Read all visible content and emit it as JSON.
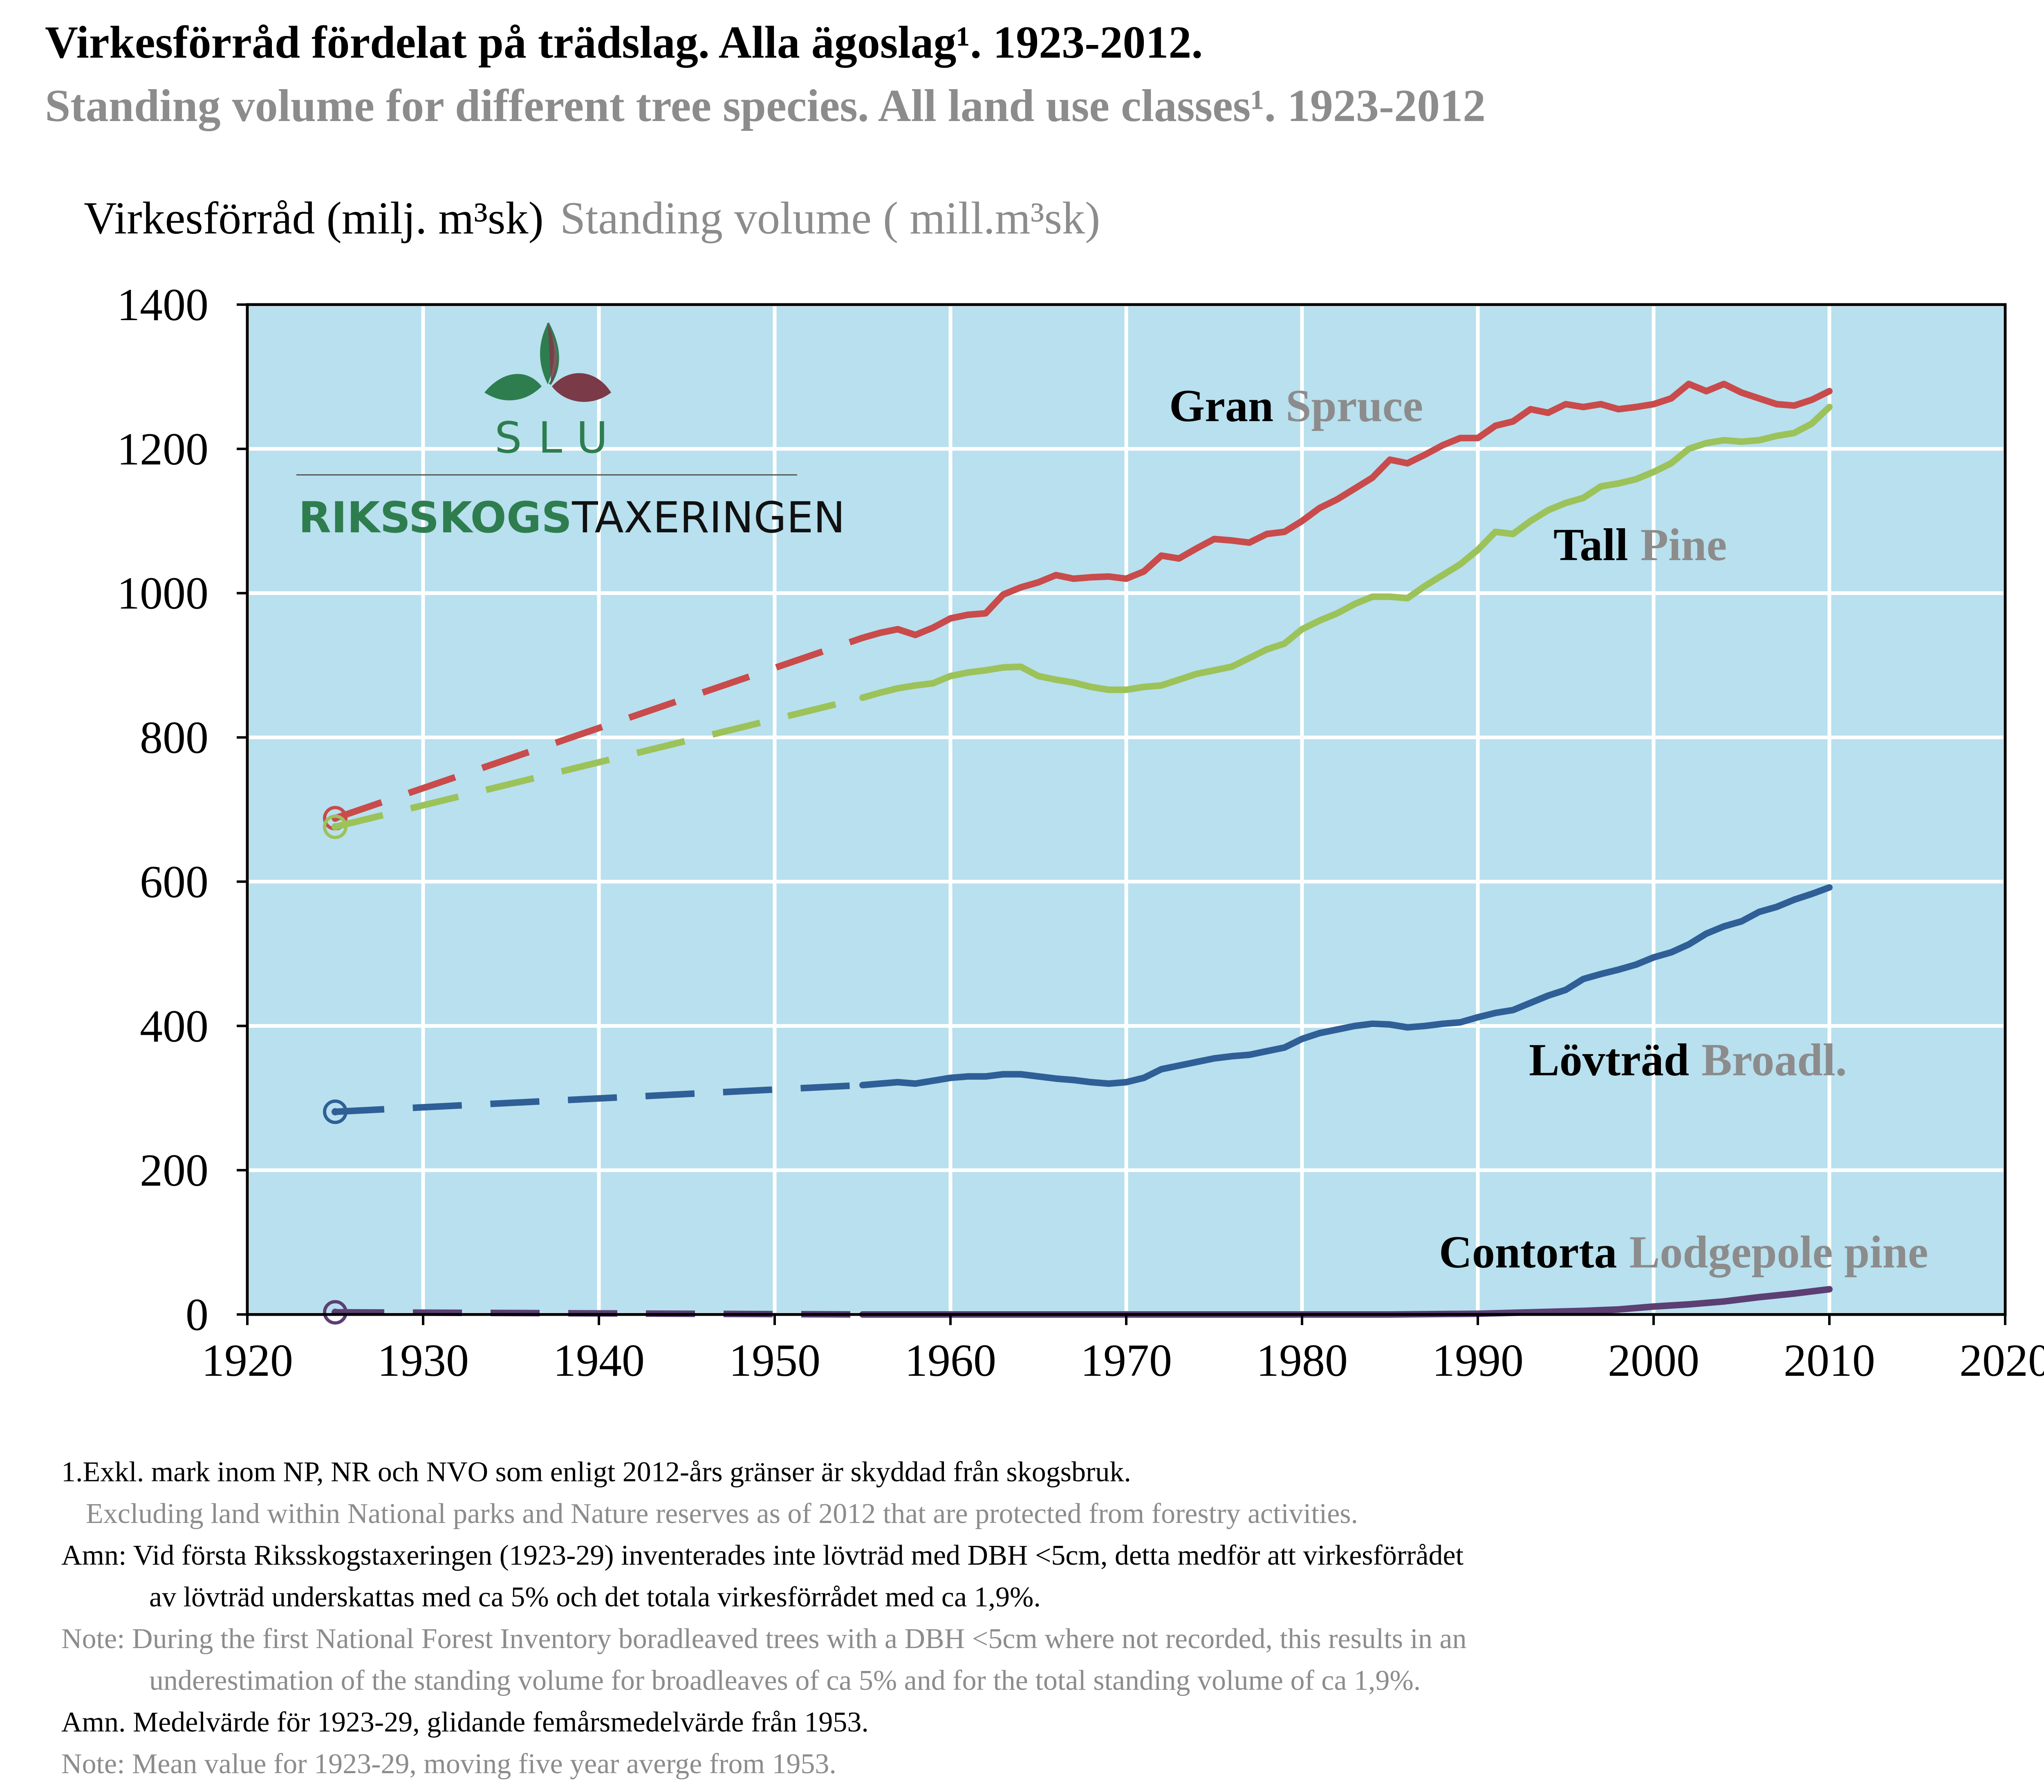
{
  "title": "Virkesförråd fördelat på trädslag. Alla ägoslag¹. 1923-2012.",
  "subtitle": "Standing volume for different tree species. All land use classes¹. 1923-2012",
  "ylabel_sv": "Virkesförråd (milj. m³sk)",
  "ylabel_en": "Standing volume ( mill.m³sk)",
  "logo": {
    "slu": "SLU",
    "riks_bold": "RIKSSKOGS",
    "riks_thin": "TAXERINGEN"
  },
  "colors": {
    "plot_bg": "#b8e0ee",
    "grid": "#ffffff",
    "spruce": "#c94b4b",
    "pine": "#9cc25a",
    "broadl": "#2f5f96",
    "lodgepole": "#5c3f73"
  },
  "series_labels": {
    "spruce": {
      "sv": "Gran",
      "en": "Spruce"
    },
    "pine": {
      "sv": "Tall",
      "en": "Pine"
    },
    "broadl": {
      "sv": "Lövträd",
      "en": "Broadl."
    },
    "lodgepole": {
      "sv": "Contorta",
      "en": "Lodgepole pine"
    }
  },
  "notes": [
    "1.Exkl. mark inom NP, NR och NVO som enligt 2012-års gränser är skyddad från skogsbruk.",
    "Excluding land within National parks and Nature reserves as of 2012 that are protected from forestry activities.",
    "Amn: Vid första Riksskogstaxeringen (1923-29) inventerades inte lövträd med DBH <5cm, detta medför att virkesförrådet",
    "av lövträd underskattas med ca 5% och det totala virkesförrådet med ca 1,9%.",
    "Note: During the first National Forest Inventory boradleaved trees with a DBH <5cm where not recorded, this results in an",
    "underestimation of the standing volume for broadleaves of ca 5% and for the total standing volume of ca 1,9%.",
    "Amn. Medelvärde för 1923-29, glidande femårsmedelvärde från 1953.",
    "Note: Mean value for 1923-29, moving five year averge from 1953."
  ],
  "chart_data": {
    "type": "line",
    "xlim": [
      1920,
      2020
    ],
    "ylim": [
      0,
      1400
    ],
    "xticks": [
      1920,
      1930,
      1940,
      1950,
      1960,
      1970,
      1980,
      1990,
      2000,
      2010,
      2020
    ],
    "yticks": [
      0,
      200,
      400,
      600,
      800,
      1000,
      1200,
      1400
    ],
    "grid": true,
    "legend": "inline labels",
    "start_points": {
      "year": 1925,
      "spruce": 688,
      "pine": 676,
      "broadl": 281,
      "lodgepole": 3
    },
    "series": [
      {
        "key": "spruce",
        "name": "Gran Spruce",
        "dashed": [
          [
            1925,
            688
          ],
          [
            1955,
            938
          ]
        ],
        "solid": [
          [
            1955,
            938
          ],
          [
            1956,
            945
          ],
          [
            1957,
            950
          ],
          [
            1958,
            942
          ],
          [
            1959,
            952
          ],
          [
            1960,
            965
          ],
          [
            1961,
            970
          ],
          [
            1962,
            972
          ],
          [
            1963,
            998
          ],
          [
            1964,
            1008
          ],
          [
            1965,
            1015
          ],
          [
            1966,
            1025
          ],
          [
            1967,
            1020
          ],
          [
            1968,
            1022
          ],
          [
            1969,
            1023
          ],
          [
            1970,
            1020
          ],
          [
            1971,
            1030
          ],
          [
            1972,
            1052
          ],
          [
            1973,
            1048
          ],
          [
            1974,
            1062
          ],
          [
            1975,
            1075
          ],
          [
            1976,
            1073
          ],
          [
            1977,
            1070
          ],
          [
            1978,
            1082
          ],
          [
            1979,
            1085
          ],
          [
            1980,
            1100
          ],
          [
            1981,
            1118
          ],
          [
            1982,
            1130
          ],
          [
            1983,
            1145
          ],
          [
            1984,
            1160
          ],
          [
            1985,
            1185
          ],
          [
            1986,
            1180
          ],
          [
            1987,
            1192
          ],
          [
            1988,
            1205
          ],
          [
            1989,
            1215
          ],
          [
            1990,
            1215
          ],
          [
            1991,
            1232
          ],
          [
            1992,
            1238
          ],
          [
            1993,
            1255
          ],
          [
            1994,
            1250
          ],
          [
            1995,
            1262
          ],
          [
            1996,
            1258
          ],
          [
            1997,
            1262
          ],
          [
            1998,
            1255
          ],
          [
            1999,
            1258
          ],
          [
            2000,
            1262
          ],
          [
            2001,
            1270
          ],
          [
            2002,
            1290
          ],
          [
            2003,
            1280
          ],
          [
            2004,
            1290
          ],
          [
            2005,
            1278
          ],
          [
            2006,
            1270
          ],
          [
            2007,
            1262
          ],
          [
            2008,
            1260
          ],
          [
            2009,
            1268
          ],
          [
            2010,
            1280
          ]
        ]
      },
      {
        "key": "pine",
        "name": "Tall Pine",
        "dashed": [
          [
            1925,
            676
          ],
          [
            1955,
            855
          ]
        ],
        "solid": [
          [
            1955,
            855
          ],
          [
            1956,
            862
          ],
          [
            1957,
            868
          ],
          [
            1958,
            872
          ],
          [
            1959,
            875
          ],
          [
            1960,
            885
          ],
          [
            1961,
            890
          ],
          [
            1962,
            893
          ],
          [
            1963,
            897
          ],
          [
            1964,
            898
          ],
          [
            1965,
            885
          ],
          [
            1966,
            880
          ],
          [
            1967,
            876
          ],
          [
            1968,
            870
          ],
          [
            1969,
            866
          ],
          [
            1970,
            866
          ],
          [
            1971,
            870
          ],
          [
            1972,
            872
          ],
          [
            1973,
            880
          ],
          [
            1974,
            888
          ],
          [
            1975,
            893
          ],
          [
            1976,
            898
          ],
          [
            1977,
            910
          ],
          [
            1978,
            922
          ],
          [
            1979,
            930
          ],
          [
            1980,
            950
          ],
          [
            1981,
            962
          ],
          [
            1982,
            972
          ],
          [
            1983,
            985
          ],
          [
            1984,
            995
          ],
          [
            1985,
            995
          ],
          [
            1986,
            993
          ],
          [
            1987,
            1010
          ],
          [
            1988,
            1025
          ],
          [
            1989,
            1040
          ],
          [
            1990,
            1060
          ],
          [
            1991,
            1085
          ],
          [
            1992,
            1082
          ],
          [
            1993,
            1100
          ],
          [
            1994,
            1115
          ],
          [
            1995,
            1125
          ],
          [
            1996,
            1132
          ],
          [
            1997,
            1148
          ],
          [
            1998,
            1152
          ],
          [
            1999,
            1158
          ],
          [
            2000,
            1168
          ],
          [
            2001,
            1180
          ],
          [
            2002,
            1200
          ],
          [
            2003,
            1208
          ],
          [
            2004,
            1212
          ],
          [
            2005,
            1210
          ],
          [
            2006,
            1212
          ],
          [
            2007,
            1218
          ],
          [
            2008,
            1222
          ],
          [
            2009,
            1235
          ],
          [
            2010,
            1258
          ]
        ]
      },
      {
        "key": "broadl",
        "name": "Lövträd Broadl.",
        "dashed": [
          [
            1925,
            281
          ],
          [
            1955,
            318
          ]
        ],
        "solid": [
          [
            1955,
            318
          ],
          [
            1956,
            320
          ],
          [
            1957,
            322
          ],
          [
            1958,
            320
          ],
          [
            1959,
            324
          ],
          [
            1960,
            328
          ],
          [
            1961,
            330
          ],
          [
            1962,
            330
          ],
          [
            1963,
            333
          ],
          [
            1964,
            333
          ],
          [
            1965,
            330
          ],
          [
            1966,
            327
          ],
          [
            1967,
            325
          ],
          [
            1968,
            322
          ],
          [
            1969,
            320
          ],
          [
            1970,
            322
          ],
          [
            1971,
            328
          ],
          [
            1972,
            340
          ],
          [
            1973,
            345
          ],
          [
            1974,
            350
          ],
          [
            1975,
            355
          ],
          [
            1976,
            358
          ],
          [
            1977,
            360
          ],
          [
            1978,
            365
          ],
          [
            1979,
            370
          ],
          [
            1980,
            382
          ],
          [
            1981,
            390
          ],
          [
            1982,
            395
          ],
          [
            1983,
            400
          ],
          [
            1984,
            403
          ],
          [
            1985,
            402
          ],
          [
            1986,
            398
          ],
          [
            1987,
            400
          ],
          [
            1988,
            403
          ],
          [
            1989,
            405
          ],
          [
            1990,
            412
          ],
          [
            1991,
            418
          ],
          [
            1992,
            422
          ],
          [
            1993,
            432
          ],
          [
            1994,
            442
          ],
          [
            1995,
            450
          ],
          [
            1996,
            465
          ],
          [
            1997,
            472
          ],
          [
            1998,
            478
          ],
          [
            1999,
            485
          ],
          [
            2000,
            495
          ],
          [
            2001,
            502
          ],
          [
            2002,
            513
          ],
          [
            2003,
            528
          ],
          [
            2004,
            538
          ],
          [
            2005,
            545
          ],
          [
            2006,
            558
          ],
          [
            2007,
            565
          ],
          [
            2008,
            575
          ],
          [
            2009,
            583
          ],
          [
            2010,
            592
          ]
        ]
      },
      {
        "key": "lodgepole",
        "name": "Contorta Lodgepole pine",
        "dashed": [
          [
            1925,
            3
          ],
          [
            1955,
            0
          ]
        ],
        "solid": [
          [
            1955,
            0
          ],
          [
            1975,
            0
          ],
          [
            1985,
            0
          ],
          [
            1990,
            1
          ],
          [
            1993,
            3
          ],
          [
            1996,
            5
          ],
          [
            1998,
            7
          ],
          [
            2000,
            11
          ],
          [
            2002,
            14
          ],
          [
            2004,
            18
          ],
          [
            2006,
            24
          ],
          [
            2008,
            29
          ],
          [
            2010,
            35
          ]
        ]
      }
    ]
  }
}
